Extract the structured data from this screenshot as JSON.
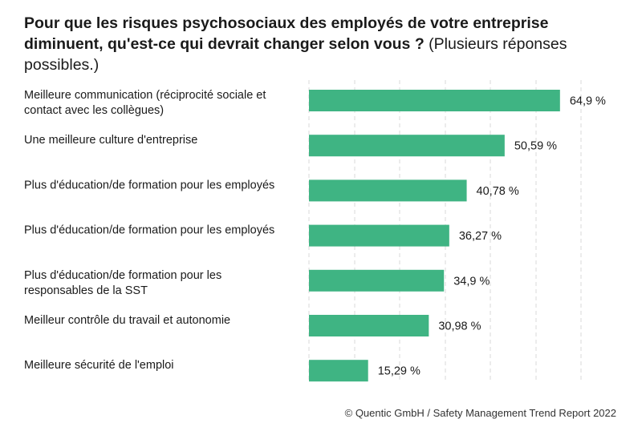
{
  "title": {
    "bold": "Pour que les risques psychosociaux des employés de votre entreprise diminuent, qu'est-ce qui devrait changer selon vous ?",
    "normal": "(Plusieurs réponses possibles.)"
  },
  "footer": "© Quentic GmbH / Safety Management Trend Report 2022",
  "colors": {
    "bar": "#3fb483",
    "grid": "#d9d9d9"
  },
  "chart_data": {
    "type": "bar",
    "orientation": "horizontal",
    "categories": [
      [
        "Meilleure communication (réciprocité sociale et",
        "contact avec les collègues)"
      ],
      [
        "Une meilleure culture d'entreprise"
      ],
      [
        "Plus d'éducation/de formation pour les employés"
      ],
      [
        "Plus d'éducation/de formation pour les employés"
      ],
      [
        "Plus d'éducation/de formation pour les",
        "responsables de la SST"
      ],
      [
        "Meilleur contrôle du travail et autonomie"
      ],
      [
        "Meilleure sécurité de l'emploi"
      ]
    ],
    "values": [
      64.9,
      50.59,
      40.78,
      36.27,
      34.9,
      30.98,
      15.29
    ],
    "value_labels": [
      "64,9 %",
      "50,59 %",
      "40,78 %",
      "36,27 %",
      "34,9 %",
      "30,98 %",
      "15,29 %"
    ],
    "xlim": [
      0,
      70
    ],
    "grid": true
  }
}
